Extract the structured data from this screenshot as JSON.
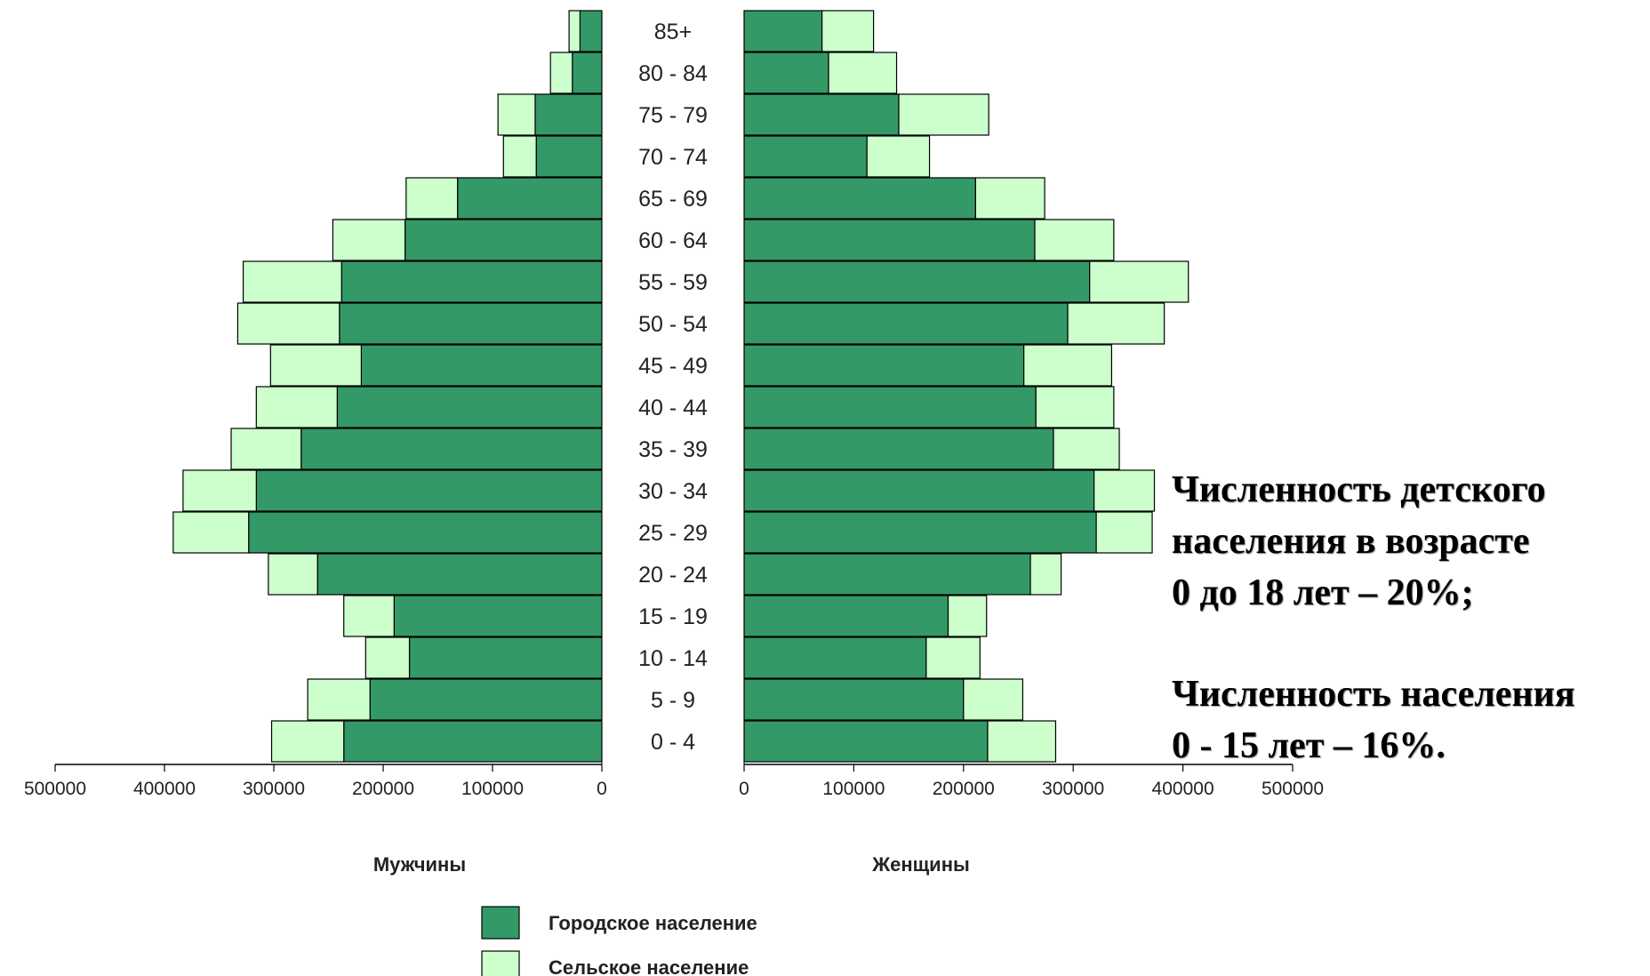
{
  "chart_data": {
    "type": "bar",
    "subtype": "population-pyramid",
    "categories": [
      "0 - 4",
      "5 - 9",
      "10 - 14",
      "15 - 19",
      "20 - 24",
      "25 - 29",
      "30 - 34",
      "35 - 39",
      "40 - 44",
      "45 - 49",
      "50 - 54",
      "55 - 59",
      "60 - 64",
      "65 - 69",
      "70 - 74",
      "75 - 79",
      "80 - 84",
      "85+"
    ],
    "left_label": "Мужчины",
    "right_label": "Женщины",
    "xlim": [
      0,
      500000
    ],
    "ticks": [
      0,
      100000,
      200000,
      300000,
      400000,
      500000
    ],
    "tick_labels": [
      "0",
      "100000",
      "200000",
      "300000",
      "400000",
      "500000"
    ],
    "stacked": true,
    "series": [
      {
        "name": "Городское население",
        "color": "#339966",
        "men": [
          236000,
          212000,
          176000,
          190000,
          260000,
          323000,
          316000,
          275000,
          242000,
          220000,
          240000,
          238000,
          180000,
          132000,
          60000,
          61000,
          27000,
          20000
        ],
        "women": [
          222000,
          200000,
          166000,
          186000,
          261000,
          321000,
          319000,
          282000,
          266000,
          255000,
          295000,
          315000,
          265000,
          211000,
          112000,
          141000,
          77000,
          71000
        ]
      },
      {
        "name": "Сельское население",
        "color": "#ccffcc",
        "men": [
          66000,
          57000,
          40000,
          46000,
          45000,
          69000,
          67000,
          64000,
          74000,
          83000,
          93000,
          90000,
          66000,
          47000,
          30000,
          34000,
          20000,
          10000
        ],
        "women": [
          62000,
          54000,
          49000,
          35000,
          28000,
          51000,
          55000,
          60000,
          71000,
          80000,
          88000,
          90000,
          72000,
          63000,
          57000,
          82000,
          62000,
          47000
        ]
      }
    ],
    "legend_position": "bottom"
  },
  "annotations": {
    "line1": "Численность детского",
    "line2": "населения в возрасте",
    "line3": "0 до 18 лет – 20%;",
    "line4": "Численность  населения",
    "line5": "0 - 15 лет – 16%."
  }
}
